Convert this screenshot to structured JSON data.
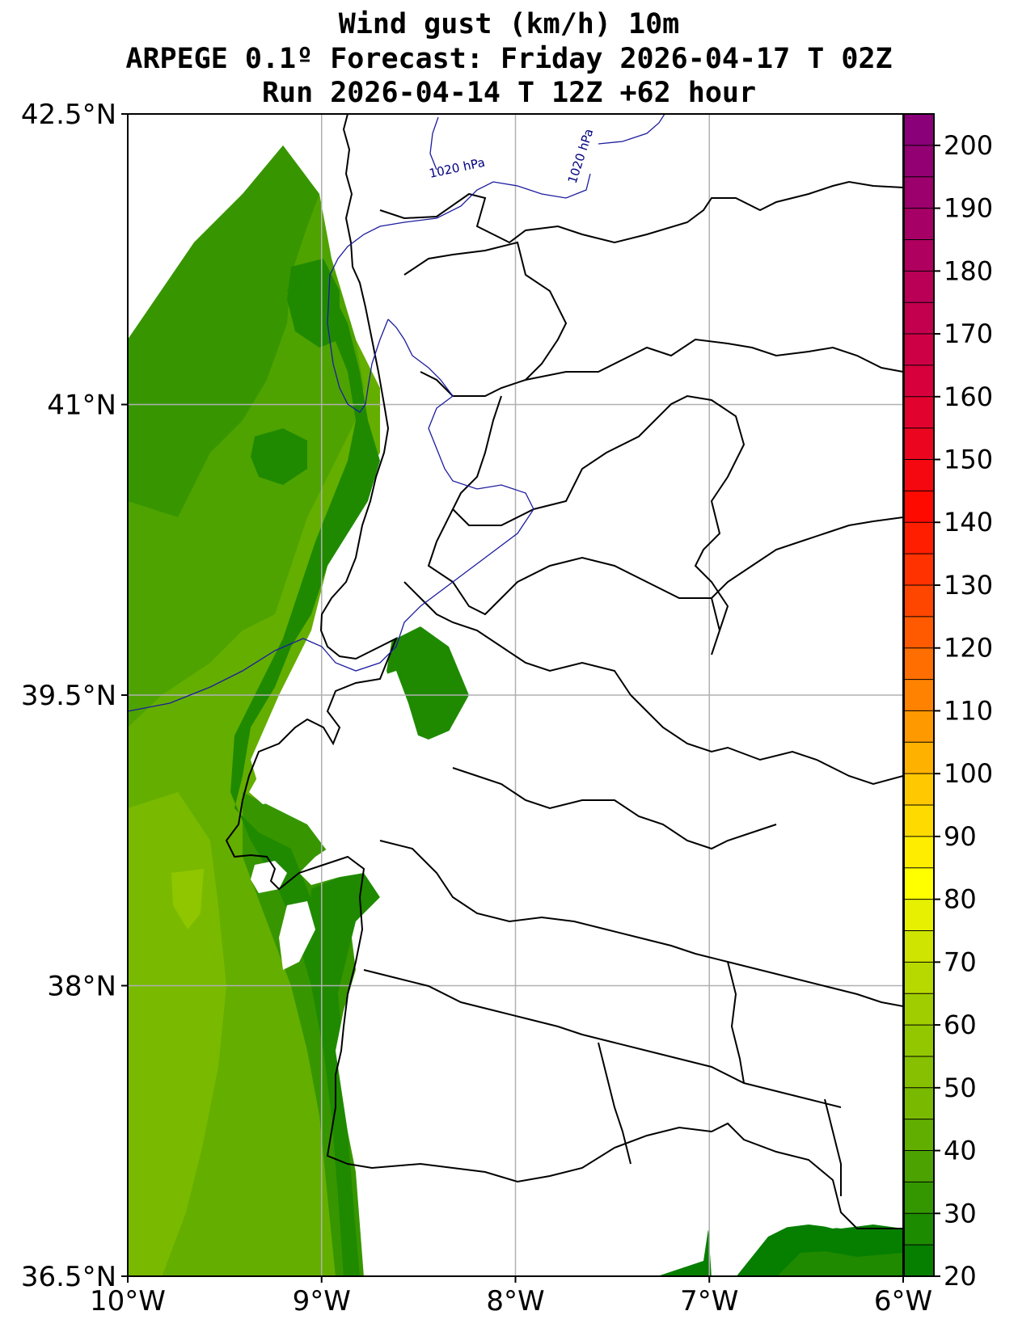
{
  "title": {
    "line1": "Wind gust (km/h) 10m",
    "line2": "ARPEGE 0.1º Forecast: Friday 2026-04-17 T 02Z",
    "line3": "Run 2026-04-14 T 12Z +62 hour"
  },
  "map": {
    "lon_range": [
      -10,
      -6
    ],
    "lat_range": [
      36.5,
      42.5
    ],
    "grid": true,
    "lat_ticks": [
      {
        "value": 42.5,
        "label": "42.5°N"
      },
      {
        "value": 41.0,
        "label": "41°N"
      },
      {
        "value": 39.5,
        "label": "39.5°N"
      },
      {
        "value": 38.0,
        "label": "38°N"
      },
      {
        "value": 36.5,
        "label": "36.5°N"
      }
    ],
    "lon_ticks": [
      {
        "value": -10,
        "label": "10°W"
      },
      {
        "value": -9,
        "label": "9°W"
      },
      {
        "value": -8,
        "label": "8°W"
      },
      {
        "value": -7,
        "label": "7°W"
      },
      {
        "value": -6,
        "label": "6°W"
      }
    ],
    "isobar_labels": [
      "1020 hPa",
      "1020 hPa"
    ],
    "colors": {
      "gust_20": "#067f00",
      "gust_25": "#1f8a00",
      "gust_30": "#379600",
      "gust_35": "#4ea300",
      "gust_40": "#64ae00",
      "gust_45": "#79ba00",
      "gust_50": "#8fc600",
      "coast": "#000000",
      "isobar": "#000080",
      "grid": "#b0b0b0"
    }
  },
  "colorbar": {
    "min": 20,
    "max": 205,
    "step": 5,
    "tick_labels": [
      "20",
      "30",
      "40",
      "50",
      "60",
      "70",
      "80",
      "90",
      "100",
      "110",
      "120",
      "130",
      "140",
      "150",
      "160",
      "170",
      "180",
      "190",
      "200"
    ]
  }
}
